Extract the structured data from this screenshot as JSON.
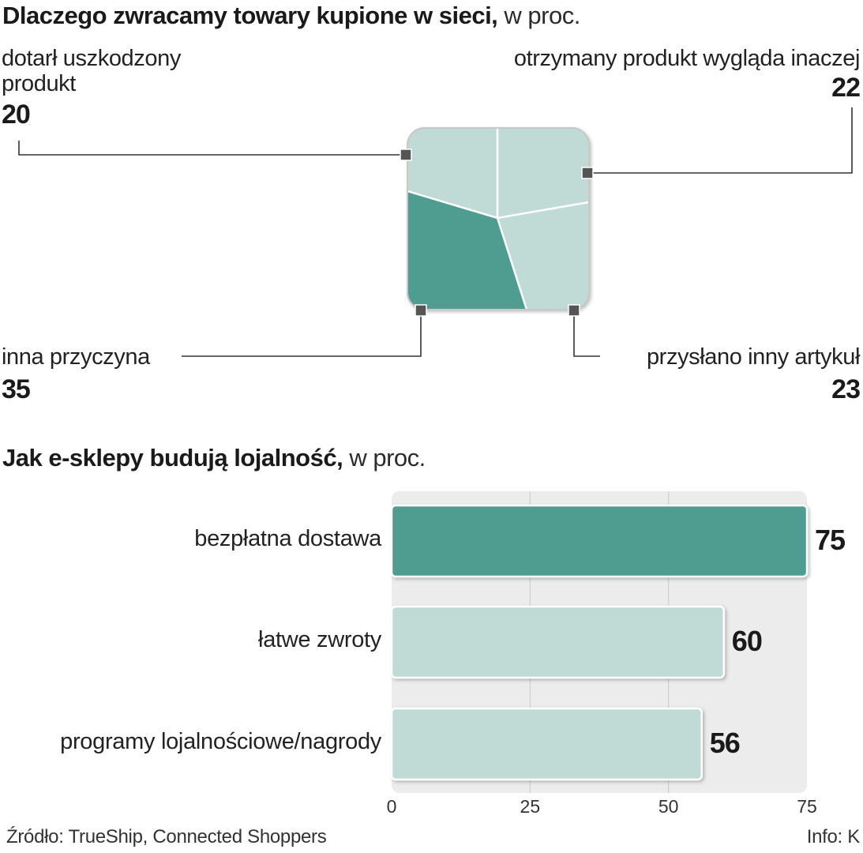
{
  "chart_data": [
    {
      "type": "pie",
      "title": "Dlaczego zwracamy towary kupione w sieci,",
      "unit": "w proc.",
      "slices": [
        {
          "label_lines": [
            "dotarł uszkodzony",
            "produkt"
          ],
          "value": 20,
          "color": "#c0dad6"
        },
        {
          "label_lines": [
            "otrzymany produkt wygląda inaczej"
          ],
          "value": 22,
          "color": "#c0dad6"
        },
        {
          "label_lines": [
            "przysłano inny artykuł"
          ],
          "value": 23,
          "color": "#c0dad6"
        },
        {
          "label_lines": [
            "inna przyczyna"
          ],
          "value": 35,
          "color": "#4f9c90"
        }
      ]
    },
    {
      "type": "bar",
      "orientation": "horizontal",
      "title": "Jak e-sklepy budują lojalność,",
      "unit": "w proc.",
      "categories": [
        "bezpłatna dostawa",
        "łatwe zwroty",
        "programy lojalnościowe/nagrody"
      ],
      "values": [
        75,
        60,
        56
      ],
      "colors": [
        "#4f9c90",
        "#c0dad6",
        "#c0dad6"
      ],
      "xlim": [
        0,
        75
      ],
      "ticks": [
        0,
        25,
        50,
        75
      ]
    }
  ],
  "footer": {
    "source": "Źródło: TrueShip, Connected Shoppers",
    "info": "Info: K"
  },
  "colors": {
    "accent": "#4f9c90",
    "light": "#c0dad6",
    "plot_bg": "#ececec"
  }
}
